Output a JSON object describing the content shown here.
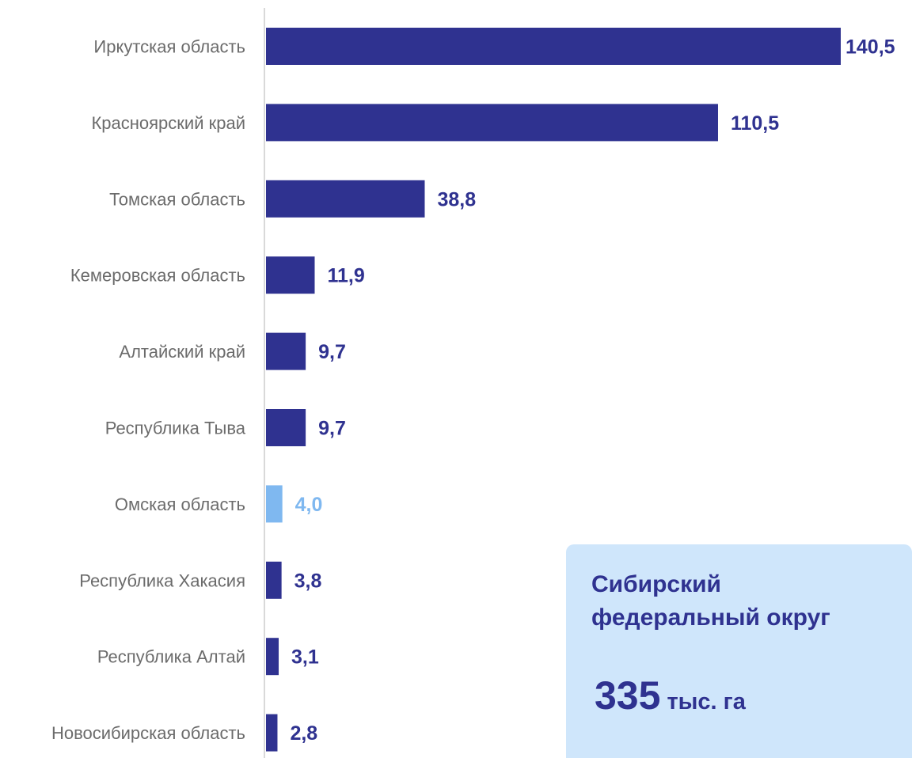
{
  "chart_data": {
    "type": "bar",
    "orientation": "horizontal",
    "categories": [
      "Иркутская область",
      "Красноярский край",
      "Томская область",
      "Кемеровская область",
      "Алтайский край",
      "Республика Тыва",
      "Омская область",
      "Республика Хакасия",
      "Республика Алтай",
      "Новосибирская область"
    ],
    "values": [
      140.5,
      110.5,
      38.8,
      11.9,
      9.7,
      9.7,
      4.0,
      3.8,
      3.1,
      2.8
    ],
    "value_labels": [
      "140,5",
      "110,5",
      "38,8",
      "11,9",
      "9,7",
      "9,7",
      "4,0",
      "3,8",
      "3,1",
      "2,8"
    ],
    "highlight_category": "Омская область",
    "colors": {
      "bar": "#2f3290",
      "highlight": "#7fb8f0",
      "axis": "#d9d9d9",
      "category_text": "#6b6b6b"
    },
    "xlim": [
      0,
      140.5
    ],
    "grid": false,
    "legend": "none"
  },
  "info_box": {
    "title": "Сибирский\nфедеральный округ",
    "total_value": "335",
    "total_unit": "тыс. га",
    "background": "#cfe6fb",
    "text_color": "#2f3290"
  }
}
